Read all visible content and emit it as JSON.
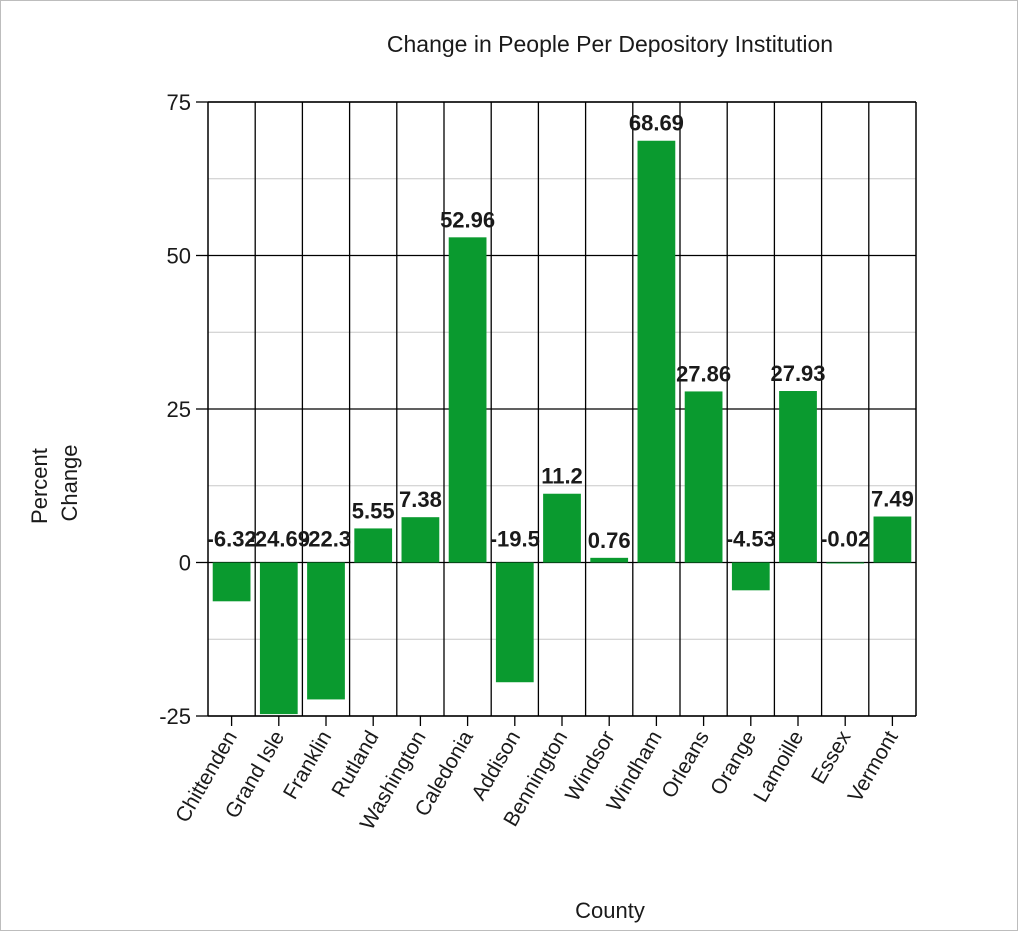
{
  "chart_data": {
    "type": "bar",
    "title": "Change in People Per Depository Institution",
    "xlabel": "County",
    "ylabel_lines": [
      "Percent",
      "Change"
    ],
    "categories": [
      "Chittenden",
      "Grand Isle",
      "Franklin",
      "Rutland",
      "Washington",
      "Caledonia",
      "Addison",
      "Bennington",
      "Windsor",
      "Windham",
      "Orleans",
      "Orange",
      "Lamoille",
      "Essex",
      "Vermont"
    ],
    "values": [
      -6.32,
      -24.69,
      -22.3,
      5.55,
      7.38,
      52.96,
      -19.5,
      11.2,
      0.76,
      68.69,
      27.86,
      -4.53,
      27.93,
      -0.02,
      7.49
    ],
    "data_labels": [
      "-6.32",
      "-24.69",
      "-22.3",
      "5.55",
      "7.38",
      "52.96",
      "-19.5",
      "11.2",
      "0.76",
      "68.69",
      "27.86",
      "-4.53",
      "27.93",
      "-0.02",
      "7.49"
    ],
    "yticks": [
      -25,
      0,
      25,
      50,
      75
    ],
    "ytick_labels": [
      "-25",
      "0",
      "25",
      "50",
      "75"
    ],
    "ylim": [
      -25,
      75
    ],
    "grid": true,
    "bar_color": "#0a9a2f"
  }
}
